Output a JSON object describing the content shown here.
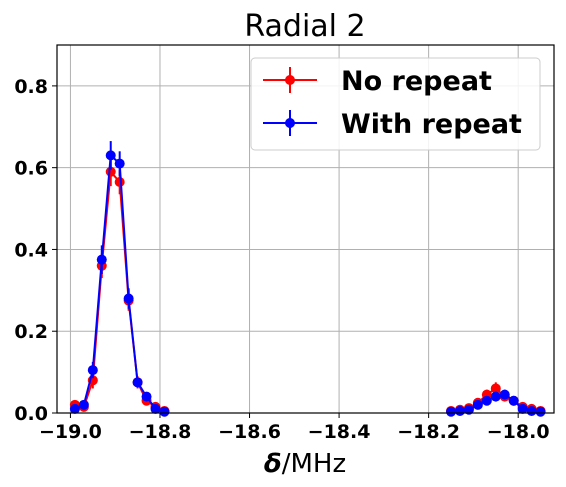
{
  "chart_data": {
    "type": "line",
    "title": "Radial 2",
    "xlabel_symbol": "δ",
    "xlabel_unit": "/MHz",
    "ylabel": "",
    "xlim": [
      -19.03,
      -17.92
    ],
    "ylim": [
      0.0,
      0.9
    ],
    "xticks": [
      -19.0,
      -18.8,
      -18.6,
      -18.4,
      -18.2,
      -18.0
    ],
    "xtick_labels": [
      "−19.0",
      "−18.8",
      "−18.6",
      "−18.4",
      "−18.2",
      "−18.0"
    ],
    "yticks": [
      0.0,
      0.2,
      0.4,
      0.6,
      0.8
    ],
    "ytick_labels": [
      "0.0",
      "0.2",
      "0.4",
      "0.6",
      "0.8"
    ],
    "grid": true,
    "legend_position": "top-right",
    "series": [
      {
        "name": "No repeat",
        "color": "#ff0000",
        "segments": [
          {
            "x": [
              -18.99,
              -18.97,
              -18.95,
              -18.93,
              -18.91,
              -18.89,
              -18.87,
              -18.85,
              -18.83,
              -18.81,
              -18.79
            ],
            "y": [
              0.02,
              0.015,
              0.08,
              0.36,
              0.59,
              0.565,
              0.275,
              0.075,
              0.03,
              0.015,
              0.005
            ],
            "err": [
              0.008,
              0.008,
              0.02,
              0.03,
              0.035,
              0.03,
              0.025,
              0.015,
              0.01,
              0.006,
              0.004
            ]
          },
          {
            "x": [
              -18.15,
              -18.13,
              -18.11,
              -18.09,
              -18.07,
              -18.05,
              -18.03,
              -18.01,
              -17.99,
              -17.97,
              -17.95
            ],
            "y": [
              0.005,
              0.008,
              0.012,
              0.025,
              0.045,
              0.06,
              0.04,
              0.03,
              0.015,
              0.01,
              0.005
            ],
            "err": [
              0.004,
              0.005,
              0.006,
              0.008,
              0.012,
              0.015,
              0.01,
              0.008,
              0.006,
              0.005,
              0.004
            ]
          }
        ]
      },
      {
        "name": "With repeat",
        "color": "#0000ff",
        "segments": [
          {
            "x": [
              -18.99,
              -18.97,
              -18.95,
              -18.93,
              -18.91,
              -18.89,
              -18.87,
              -18.85,
              -18.83,
              -18.81,
              -18.79
            ],
            "y": [
              0.01,
              0.02,
              0.105,
              0.375,
              0.63,
              0.61,
              0.28,
              0.075,
              0.04,
              0.01,
              0.003
            ],
            "err": [
              0.006,
              0.008,
              0.02,
              0.035,
              0.035,
              0.03,
              0.025,
              0.012,
              0.01,
              0.005,
              0.003
            ]
          },
          {
            "x": [
              -18.15,
              -18.13,
              -18.11,
              -18.09,
              -18.07,
              -18.05,
              -18.03,
              -18.01,
              -17.99,
              -17.97,
              -17.95
            ],
            "y": [
              0.003,
              0.005,
              0.008,
              0.02,
              0.03,
              0.04,
              0.045,
              0.03,
              0.01,
              0.005,
              0.003
            ],
            "err": [
              0.003,
              0.004,
              0.005,
              0.007,
              0.01,
              0.012,
              0.012,
              0.008,
              0.005,
              0.004,
              0.003
            ]
          }
        ]
      }
    ]
  }
}
